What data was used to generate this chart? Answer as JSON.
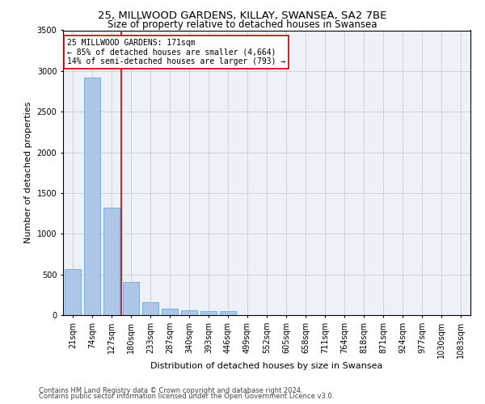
{
  "title1": "25, MILLWOOD GARDENS, KILLAY, SWANSEA, SA2 7BE",
  "title2": "Size of property relative to detached houses in Swansea",
  "xlabel": "Distribution of detached houses by size in Swansea",
  "ylabel": "Number of detached properties",
  "categories": [
    "21sqm",
    "74sqm",
    "127sqm",
    "180sqm",
    "233sqm",
    "287sqm",
    "340sqm",
    "393sqm",
    "446sqm",
    "499sqm",
    "552sqm",
    "605sqm",
    "658sqm",
    "711sqm",
    "764sqm",
    "818sqm",
    "871sqm",
    "924sqm",
    "977sqm",
    "1030sqm",
    "1083sqm"
  ],
  "values": [
    570,
    2920,
    1320,
    405,
    155,
    80,
    60,
    50,
    45,
    0,
    0,
    0,
    0,
    0,
    0,
    0,
    0,
    0,
    0,
    0,
    0
  ],
  "bar_color": "#aec6e8",
  "bar_edge_color": "#5a9fd4",
  "vline_color": "#cc0000",
  "annotation_text": "25 MILLWOOD GARDENS: 171sqm\n← 85% of detached houses are smaller (4,664)\n14% of semi-detached houses are larger (793) →",
  "annotation_box_color": "#ffffff",
  "annotation_box_edge": "#cc0000",
  "ylim": [
    0,
    3500
  ],
  "yticks": [
    0,
    500,
    1000,
    1500,
    2000,
    2500,
    3000,
    3500
  ],
  "grid_color": "#cccccc",
  "bg_color": "#eef2f8",
  "footer1": "Contains HM Land Registry data © Crown copyright and database right 2024.",
  "footer2": "Contains public sector information licensed under the Open Government Licence v3.0.",
  "title_fontsize": 9.5,
  "subtitle_fontsize": 8.5,
  "axis_label_fontsize": 8,
  "tick_fontsize": 7,
  "footer_fontsize": 6
}
